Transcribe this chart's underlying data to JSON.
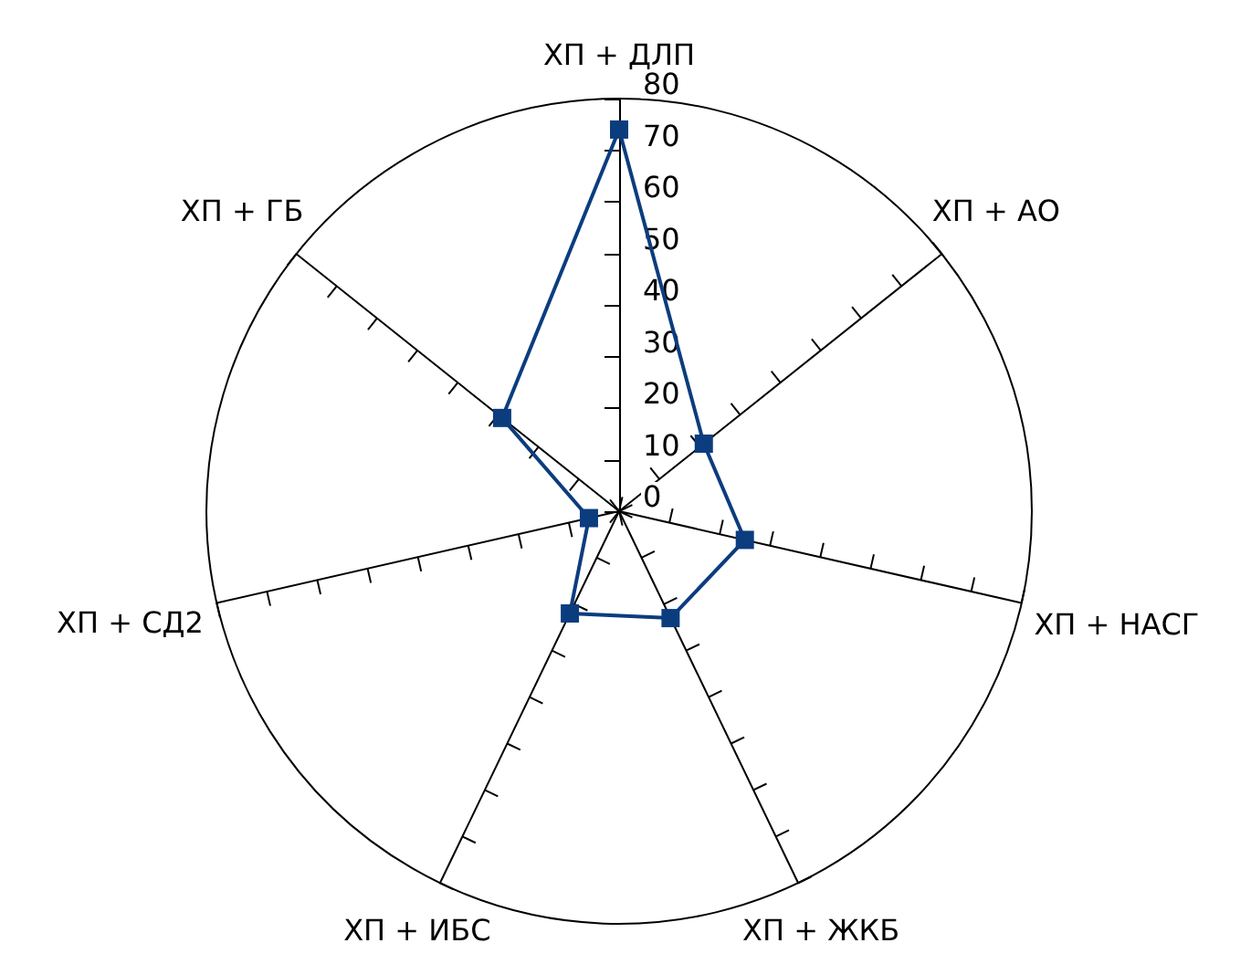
{
  "chart_data": {
    "type": "radar",
    "categories": [
      "ХП + ДЛП",
      "ХП + АО",
      "ХП + НАСГ",
      "ХП + ЖКБ",
      "ХП + ИБС",
      "ХП + СД2",
      "ХП + ГБ"
    ],
    "series": [
      {
        "color": "#0b3d7e",
        "values": [
          74,
          21,
          25,
          23,
          22,
          6,
          29
        ]
      }
    ],
    "ylim": [
      0,
      80
    ],
    "yticks": [
      0,
      10,
      20,
      30,
      40,
      50,
      60,
      70,
      80
    ],
    "marker": "square",
    "line_style": "solid"
  }
}
